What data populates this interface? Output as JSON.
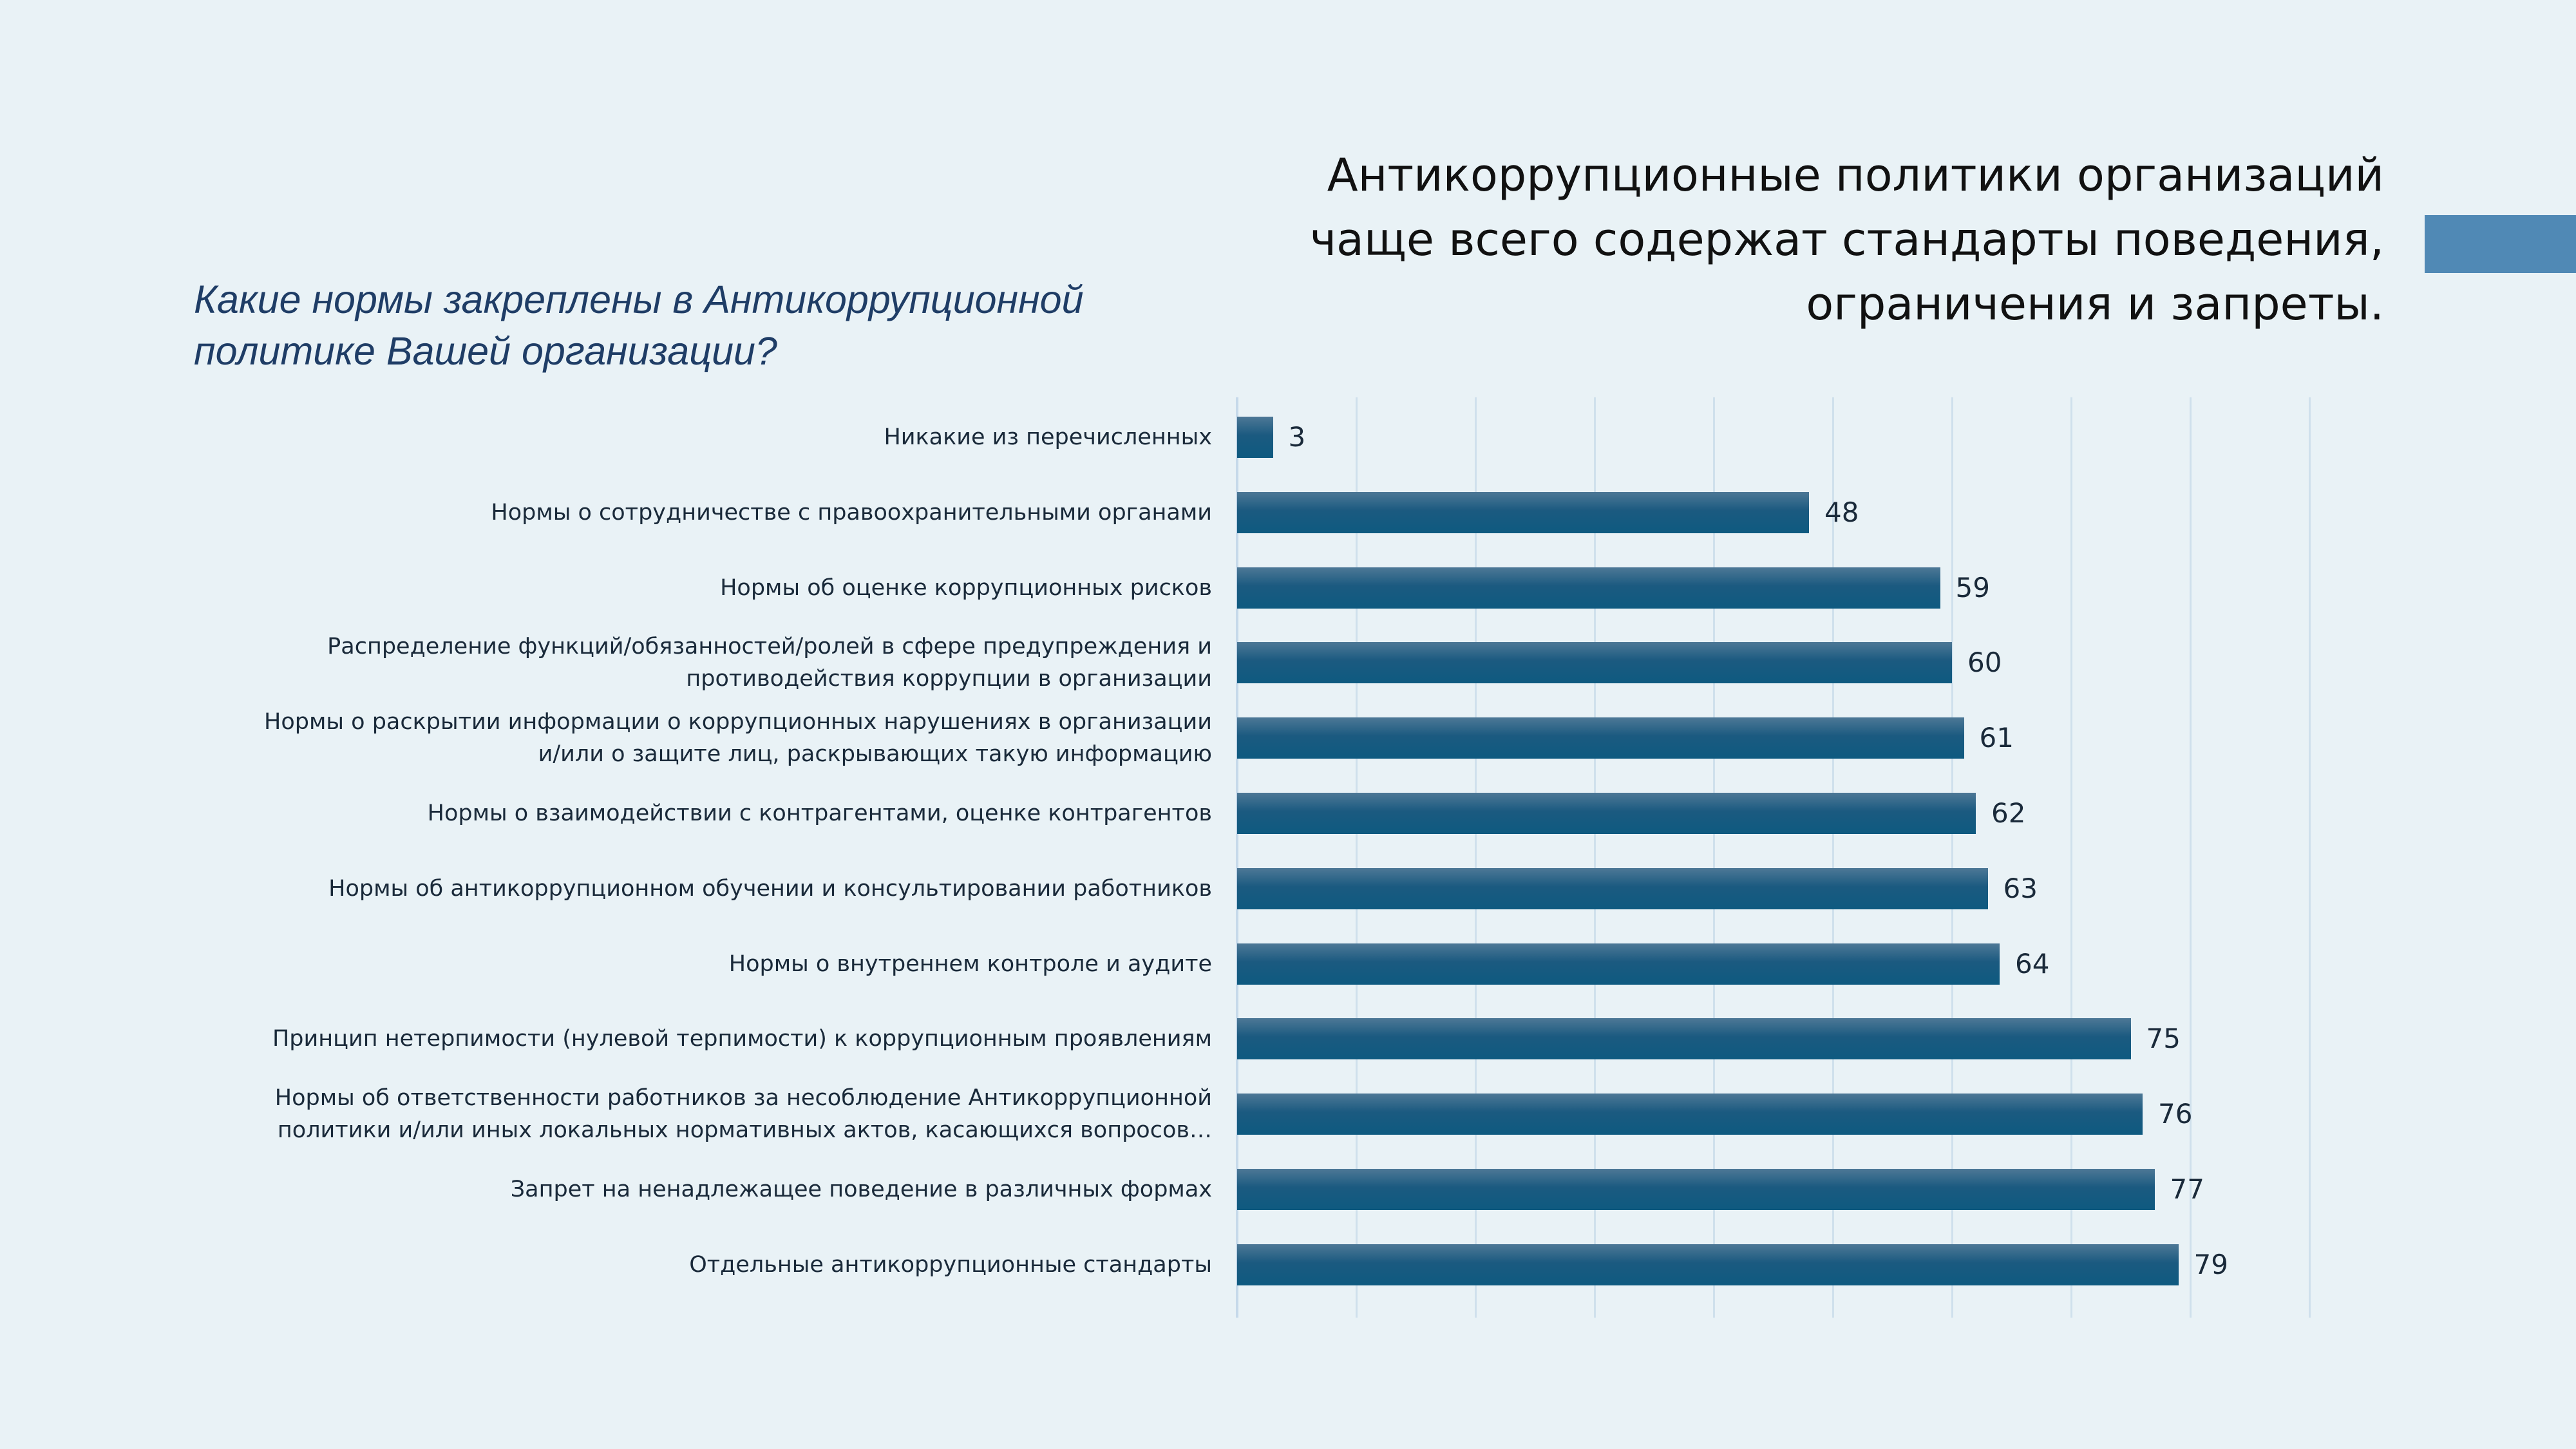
{
  "header": {
    "title_lines": [
      "Антикоррупционные политики организаций",
      "чаще всего содержат стандарты поведения,",
      "ограничения и запреты."
    ],
    "question_lines": [
      "Какие нормы закреплены в Антикоррупционной",
      "политике Вашей организации?"
    ]
  },
  "colors": {
    "bar": "#0e5a80",
    "accent": "#5089b5",
    "background": "#e9f2f6"
  },
  "chart_data": {
    "type": "bar",
    "orientation": "horizontal",
    "title": "Какие нормы закреплены в Антикоррупционной политике Вашей организации?",
    "xlim": [
      0,
      90
    ],
    "grid": true,
    "gridlines": [
      0,
      10,
      20,
      30,
      40,
      50,
      60,
      70,
      80,
      90
    ],
    "categories": [
      [
        "Никакие из перечисленных"
      ],
      [
        "Нормы о сотрудничестве с правоохранительными органами"
      ],
      [
        "Нормы об оценке коррупционных рисков"
      ],
      [
        "Распределение функций/обязанностей/ролей в сфере предупреждения и",
        "противодействия коррупции в организации"
      ],
      [
        "Нормы о раскрытии информации о коррупционных нарушениях в организации",
        "и/или о защите лиц, раскрывающих такую информацию"
      ],
      [
        "Нормы о взаимодействии с контрагентами, оценке контрагентов"
      ],
      [
        "Нормы об антикоррупционном обучении и консультировании работников"
      ],
      [
        "Нормы о внутреннем контроле и аудите"
      ],
      [
        "Принцип нетерпимости (нулевой терпимости) к коррупционным проявлениям"
      ],
      [
        "Нормы об ответственности работников за несоблюдение Антикоррупционной",
        "политики и/или иных локальных нормативных актов, касающихся вопросов…"
      ],
      [
        "Запрет на ненадлежащее поведение в различных формах"
      ],
      [
        "Отдельные антикоррупционные стандарты"
      ]
    ],
    "values": [
      3,
      48,
      59,
      60,
      61,
      62,
      63,
      64,
      75,
      76,
      77,
      79
    ]
  }
}
